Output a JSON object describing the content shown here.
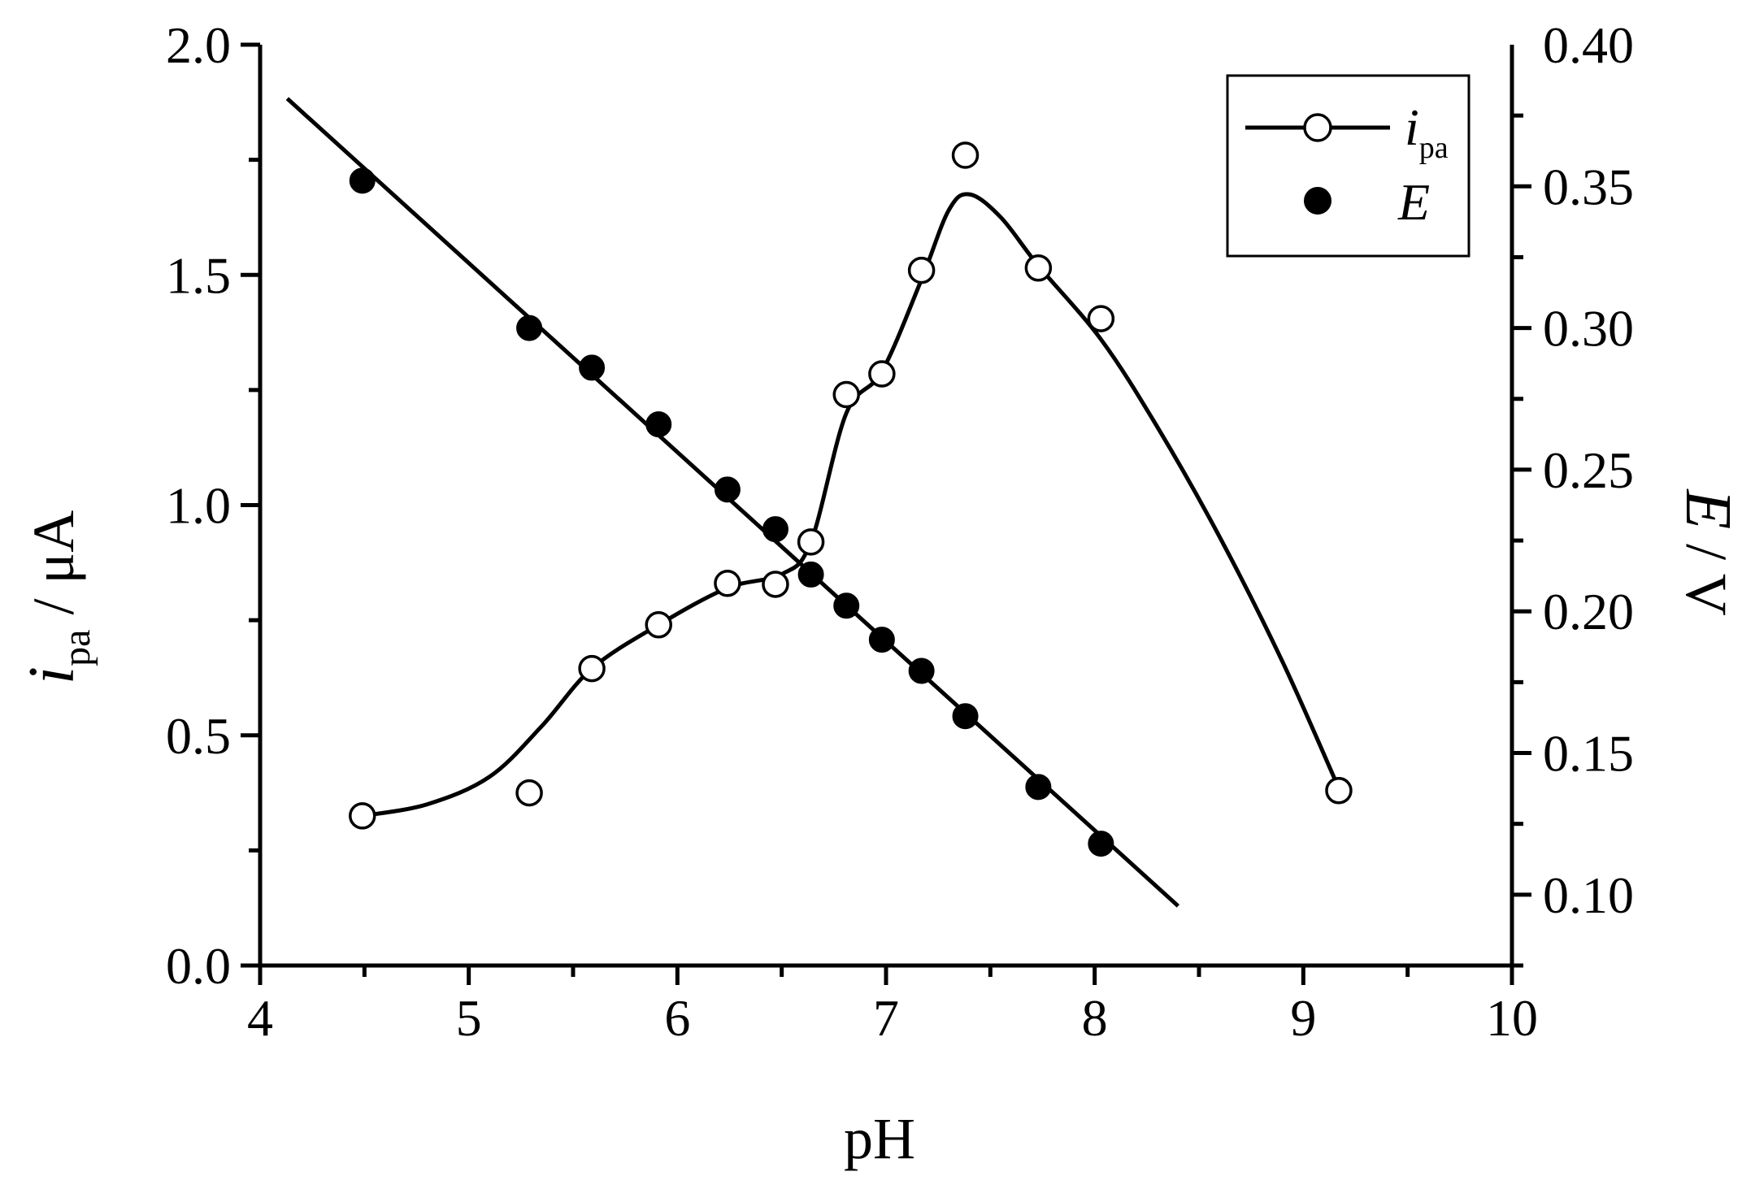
{
  "chart_data": {
    "type": "scatter",
    "xlabel": "pH",
    "ylabel_left": {
      "symbol": "i",
      "subscript": "pa",
      "unit": " / μA"
    },
    "ylabel_right": {
      "symbol": "E",
      "unit": " / V"
    },
    "xlim": [
      4,
      10
    ],
    "ylim_left": [
      0,
      2.0
    ],
    "ylim_right": [
      0.075,
      0.4
    ],
    "xticks": [
      "4",
      "5",
      "6",
      "7",
      "8",
      "9",
      "10"
    ],
    "yticks_left": [
      "0.0",
      "0.5",
      "1.0",
      "1.5",
      "2.0"
    ],
    "yticks_right": [
      "0.10",
      "0.15",
      "0.20",
      "0.25",
      "0.30",
      "0.35",
      "0.40"
    ],
    "legend": {
      "placement": "top-right",
      "entries": [
        {
          "symbol": "i",
          "subscript": "pa",
          "marker": "open-circle-line"
        },
        {
          "symbol": "E",
          "subscript": "",
          "marker": "filled-circle"
        }
      ]
    },
    "series": [
      {
        "name": "ipa",
        "axis": "left",
        "marker": "open",
        "points": [
          [
            4.49,
            0.325
          ],
          [
            5.29,
            0.375
          ],
          [
            5.59,
            0.645
          ],
          [
            5.91,
            0.74
          ],
          [
            6.24,
            0.83
          ],
          [
            6.47,
            0.828
          ],
          [
            6.64,
            0.92
          ],
          [
            6.81,
            1.24
          ],
          [
            6.98,
            1.285
          ],
          [
            7.17,
            1.51
          ],
          [
            7.38,
            1.76
          ],
          [
            7.73,
            1.515
          ],
          [
            8.03,
            1.405
          ],
          [
            9.17,
            0.38
          ]
        ],
        "curve": [
          [
            4.49,
            0.325
          ],
          [
            4.8,
            0.35
          ],
          [
            5.1,
            0.41
          ],
          [
            5.35,
            0.52
          ],
          [
            5.59,
            0.645
          ],
          [
            5.91,
            0.74
          ],
          [
            6.24,
            0.82
          ],
          [
            6.5,
            0.85
          ],
          [
            6.64,
            0.92
          ],
          [
            6.81,
            1.2
          ],
          [
            6.98,
            1.29
          ],
          [
            7.17,
            1.49
          ],
          [
            7.3,
            1.64
          ],
          [
            7.4,
            1.675
          ],
          [
            7.55,
            1.625
          ],
          [
            7.73,
            1.52
          ],
          [
            8.03,
            1.36
          ],
          [
            8.3,
            1.17
          ],
          [
            8.6,
            0.93
          ],
          [
            8.9,
            0.66
          ],
          [
            9.17,
            0.385
          ]
        ]
      },
      {
        "name": "E",
        "axis": "right",
        "marker": "filled",
        "points": [
          [
            4.49,
            0.352
          ],
          [
            5.29,
            0.3
          ],
          [
            5.59,
            0.286
          ],
          [
            5.91,
            0.266
          ],
          [
            6.24,
            0.243
          ],
          [
            6.47,
            0.229
          ],
          [
            6.64,
            0.213
          ],
          [
            6.81,
            0.202
          ],
          [
            6.98,
            0.19
          ],
          [
            7.17,
            0.179
          ],
          [
            7.38,
            0.163
          ],
          [
            7.73,
            0.138
          ],
          [
            8.03,
            0.118
          ]
        ],
        "fit_line": [
          [
            4.13,
            0.381
          ],
          [
            8.4,
            0.096
          ]
        ]
      }
    ]
  }
}
